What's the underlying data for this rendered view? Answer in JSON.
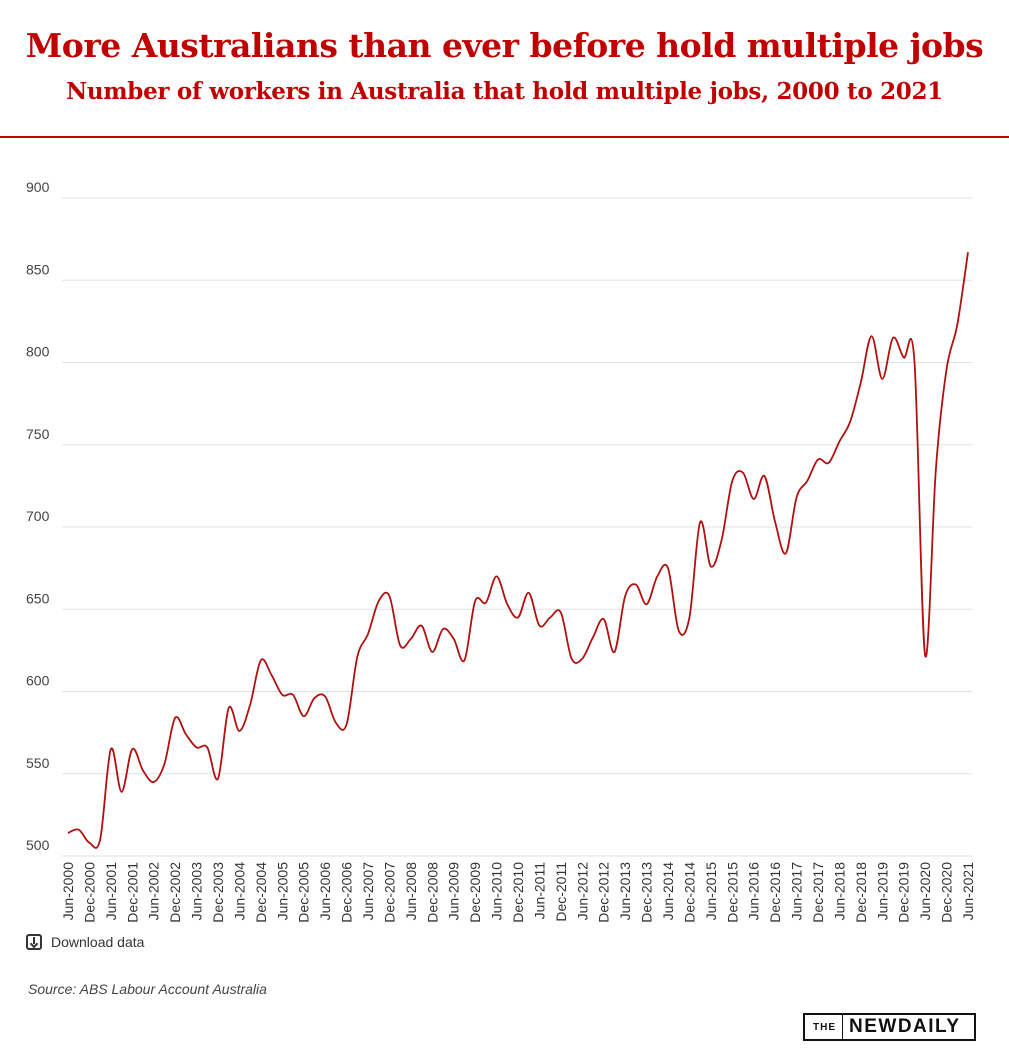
{
  "header": {
    "title": "More Australians than ever before hold multiple jobs",
    "subtitle": "Number of workers in Australia that hold multiple jobs, 2000 to 2021"
  },
  "footer": {
    "download_label": "Download data",
    "source": "Source: ABS Labour Account Australia",
    "logo_the": "THE",
    "logo_name": "NEWDAILY"
  },
  "colors": {
    "line": "#b01010",
    "accent": "#c00000",
    "grid": "#e2e2e2"
  },
  "chart_data": {
    "type": "line",
    "title": "More Australians than ever before hold multiple jobs",
    "subtitle": "Number of workers in Australia that hold multiple jobs, 2000 to 2021",
    "xlabel": "",
    "ylabel": "",
    "ylim": [
      500,
      900
    ],
    "yticks": [
      900,
      850,
      800,
      750,
      700,
      650,
      600,
      550,
      500
    ],
    "grid": true,
    "x_tick_labels": [
      "Jun-2000",
      "Dec-2000",
      "Jun-2001",
      "Dec-2001",
      "Jun-2002",
      "Dec-2002",
      "Jun-2003",
      "Dec-2003",
      "Jun-2004",
      "Dec-2004",
      "Jun-2005",
      "Dec-2005",
      "Jun-2006",
      "Dec-2006",
      "Jun-2007",
      "Dec-2007",
      "Jun-2008",
      "Dec-2008",
      "Jun-2009",
      "Dec-2009",
      "Jun-2010",
      "Dec-2010",
      "Jun-2011",
      "Dec-2011",
      "Jun-2012",
      "Dec-2012",
      "Jun-2013",
      "Dec-2013",
      "Jun-2014",
      "Dec-2014",
      "Jun-2015",
      "Dec-2015",
      "Jun-2016",
      "Dec-2016",
      "Jun-2017",
      "Dec-2017",
      "Jun-2018",
      "Dec-2018",
      "Jun-2019",
      "Dec-2019",
      "Jun-2020",
      "Dec-2020",
      "Jun-2021"
    ],
    "series": [
      {
        "values": [
          514,
          516,
          508,
          510,
          565,
          539,
          565,
          552,
          545,
          556,
          584,
          574,
          566,
          566,
          547,
          590,
          576,
          592,
          619,
          610,
          598,
          598,
          585,
          596,
          597,
          581,
          580,
          621,
          635,
          655,
          658,
          628,
          632,
          640,
          624,
          638,
          632,
          619,
          655,
          654,
          670,
          653,
          645,
          660,
          640,
          645,
          648,
          620,
          620,
          633,
          644,
          624,
          658,
          665,
          653,
          670,
          675,
          637,
          645,
          703,
          676,
          692,
          728,
          733,
          717,
          731,
          703,
          684,
          718,
          728,
          741,
          739,
          752,
          764,
          788,
          816,
          790,
          815,
          803,
          801,
          622,
          735,
          796,
          823,
          867
        ]
      }
    ]
  }
}
